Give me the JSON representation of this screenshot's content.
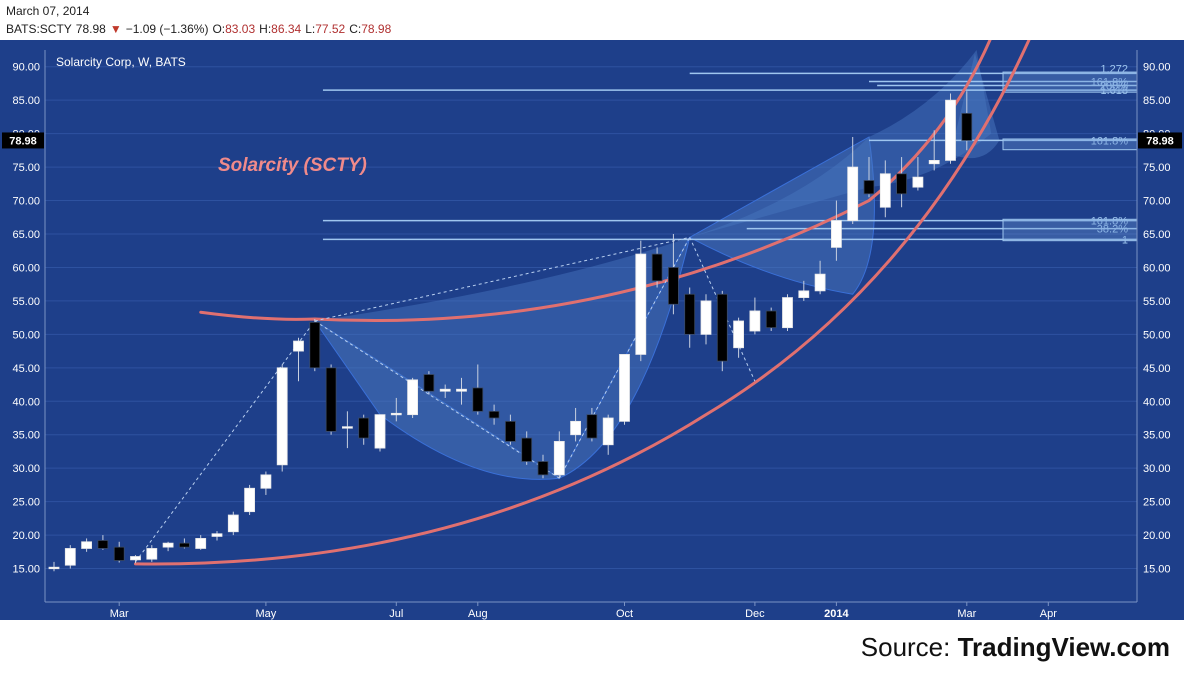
{
  "header": {
    "date": "March 07, 2014",
    "ticker": "BATS:SCTY",
    "last": "78.98",
    "change_arrow": "▼",
    "change": "−1.09 (−1.36%)",
    "o_label": "O:",
    "o": "83.03",
    "h_label": "H:",
    "h": "86.34",
    "l_label": "L:",
    "l": "77.52",
    "c_label": "C:",
    "c": "78.98"
  },
  "legend_label": "Solarcity Corp, W, BATS",
  "annotation": "Solarcity (SCTY)",
  "price_marker": "78.98",
  "source": {
    "prefix": "Source: ",
    "brand": "TradingView.com"
  },
  "colors": {
    "background": "#1e3f8a",
    "grid": "#2e52a0",
    "axis_text": "#ffffff",
    "up_body": "#ffffff",
    "down_body": "#000000",
    "wick": "#c8d0e0",
    "curve": "#e07070",
    "fib_line": "#9fc6ef",
    "pattern_fill": "#4a78c0",
    "annotation": "#f08a8a"
  },
  "chart_data": {
    "type": "candlestick",
    "title": "Solarcity Corp, W, BATS",
    "ylim": [
      10,
      92.5
    ],
    "y_ticks": [
      "90.00",
      "85.00",
      "80.00",
      "75.00",
      "70.00",
      "65.00",
      "60.00",
      "55.00",
      "50.00",
      "45.00",
      "40.00",
      "35.00",
      "30.00",
      "25.00",
      "20.00",
      "15.00"
    ],
    "x_ticks": [
      "Mar",
      "May",
      "Jul",
      "Aug",
      "Oct",
      "Dec",
      "2014",
      "Mar",
      "Apr"
    ],
    "candles": [
      {
        "o": 15.0,
        "h": 16.0,
        "l": 14.6,
        "c": 15.2
      },
      {
        "o": 15.5,
        "h": 18.5,
        "l": 15.0,
        "c": 18.0
      },
      {
        "o": 18.0,
        "h": 19.5,
        "l": 17.5,
        "c": 19.0
      },
      {
        "o": 19.2,
        "h": 20.0,
        "l": 17.8,
        "c": 18.0
      },
      {
        "o": 18.2,
        "h": 19.0,
        "l": 15.9,
        "c": 16.2
      },
      {
        "o": 16.3,
        "h": 17.0,
        "l": 15.8,
        "c": 16.8
      },
      {
        "o": 16.4,
        "h": 18.5,
        "l": 16.0,
        "c": 18.0
      },
      {
        "o": 18.2,
        "h": 19.0,
        "l": 17.6,
        "c": 18.8
      },
      {
        "o": 18.8,
        "h": 19.5,
        "l": 18.0,
        "c": 18.2
      },
      {
        "o": 18.0,
        "h": 20.0,
        "l": 17.8,
        "c": 19.5
      },
      {
        "o": 19.8,
        "h": 20.6,
        "l": 19.2,
        "c": 20.2
      },
      {
        "o": 20.5,
        "h": 23.5,
        "l": 20.0,
        "c": 23.0
      },
      {
        "o": 23.5,
        "h": 27.5,
        "l": 23.0,
        "c": 27.0
      },
      {
        "o": 27.0,
        "h": 29.5,
        "l": 26.0,
        "c": 29.0
      },
      {
        "o": 30.5,
        "h": 45.5,
        "l": 29.5,
        "c": 45.0
      },
      {
        "o": 47.5,
        "h": 49.5,
        "l": 43.0,
        "c": 49.0
      },
      {
        "o": 51.8,
        "h": 52.3,
        "l": 44.5,
        "c": 45.0
      },
      {
        "o": 45.0,
        "h": 45.5,
        "l": 35.0,
        "c": 35.5
      },
      {
        "o": 36.0,
        "h": 38.5,
        "l": 33.0,
        "c": 36.2
      },
      {
        "o": 37.5,
        "h": 38.0,
        "l": 33.5,
        "c": 34.5
      },
      {
        "o": 33.0,
        "h": 38.0,
        "l": 32.5,
        "c": 38.0
      },
      {
        "o": 38.0,
        "h": 40.5,
        "l": 37.0,
        "c": 38.2
      },
      {
        "o": 38.0,
        "h": 43.5,
        "l": 37.5,
        "c": 43.2
      },
      {
        "o": 44.0,
        "h": 44.5,
        "l": 41.0,
        "c": 41.5
      },
      {
        "o": 41.5,
        "h": 42.5,
        "l": 40.5,
        "c": 41.8
      },
      {
        "o": 41.5,
        "h": 43.5,
        "l": 39.5,
        "c": 41.8
      },
      {
        "o": 42.0,
        "h": 45.5,
        "l": 38.0,
        "c": 38.5
      },
      {
        "o": 38.5,
        "h": 39.5,
        "l": 36.5,
        "c": 37.5
      },
      {
        "o": 37.0,
        "h": 38.0,
        "l": 33.5,
        "c": 34.0
      },
      {
        "o": 34.5,
        "h": 35.5,
        "l": 30.5,
        "c": 31.0
      },
      {
        "o": 31.0,
        "h": 32.0,
        "l": 28.5,
        "c": 29.0
      },
      {
        "o": 29.0,
        "h": 35.5,
        "l": 28.5,
        "c": 34.0
      },
      {
        "o": 35.0,
        "h": 39.0,
        "l": 34.0,
        "c": 37.0
      },
      {
        "o": 38.0,
        "h": 39.0,
        "l": 34.0,
        "c": 34.5
      },
      {
        "o": 33.5,
        "h": 38.0,
        "l": 32.0,
        "c": 37.5
      },
      {
        "o": 37.0,
        "h": 47.0,
        "l": 36.5,
        "c": 47.0
      },
      {
        "o": 47.0,
        "h": 64.0,
        "l": 46.0,
        "c": 62.0
      },
      {
        "o": 62.0,
        "h": 63.0,
        "l": 57.0,
        "c": 58.0
      },
      {
        "o": 60.0,
        "h": 65.0,
        "l": 53.0,
        "c": 54.5
      },
      {
        "o": 56.0,
        "h": 57.0,
        "l": 48.0,
        "c": 50.0
      },
      {
        "o": 50.0,
        "h": 56.0,
        "l": 48.5,
        "c": 55.0
      },
      {
        "o": 56.0,
        "h": 56.5,
        "l": 44.5,
        "c": 46.0
      },
      {
        "o": 48.0,
        "h": 52.5,
        "l": 46.5,
        "c": 52.0
      },
      {
        "o": 50.5,
        "h": 55.5,
        "l": 50.0,
        "c": 53.5
      },
      {
        "o": 53.5,
        "h": 54.0,
        "l": 50.5,
        "c": 51.0
      },
      {
        "o": 51.0,
        "h": 56.0,
        "l": 50.5,
        "c": 55.5
      },
      {
        "o": 55.5,
        "h": 58.0,
        "l": 55.0,
        "c": 56.5
      },
      {
        "o": 56.5,
        "h": 61.0,
        "l": 56.0,
        "c": 59.0
      },
      {
        "o": 63.0,
        "h": 70.0,
        "l": 61.0,
        "c": 67.0
      },
      {
        "o": 67.0,
        "h": 79.5,
        "l": 66.5,
        "c": 75.0
      },
      {
        "o": 73.0,
        "h": 76.5,
        "l": 70.5,
        "c": 71.0
      },
      {
        "o": 69.0,
        "h": 76.0,
        "l": 67.5,
        "c": 74.0
      },
      {
        "o": 74.0,
        "h": 76.5,
        "l": 69.0,
        "c": 71.0
      },
      {
        "o": 72.0,
        "h": 76.5,
        "l": 71.5,
        "c": 73.5
      },
      {
        "o": 75.5,
        "h": 80.5,
        "l": 74.5,
        "c": 76.0
      },
      {
        "o": 76.0,
        "h": 86.0,
        "l": 75.5,
        "c": 85.0
      },
      {
        "o": 83.03,
        "h": 86.34,
        "l": 77.52,
        "c": 78.98
      }
    ],
    "fib_levels": [
      {
        "label": "1.272",
        "value": 89.0
      },
      {
        "label": "161.8%",
        "value": 87.8
      },
      {
        "label": "200%",
        "value": 87.2
      },
      {
        "label": "1.618",
        "value": 86.5
      },
      {
        "label": "161.8%",
        "value": 79.0
      },
      {
        "label": "161.8%",
        "value": 67.0
      },
      {
        "label": "38.2%",
        "value": 65.8
      },
      {
        "label": "1",
        "value": 64.2
      }
    ]
  }
}
